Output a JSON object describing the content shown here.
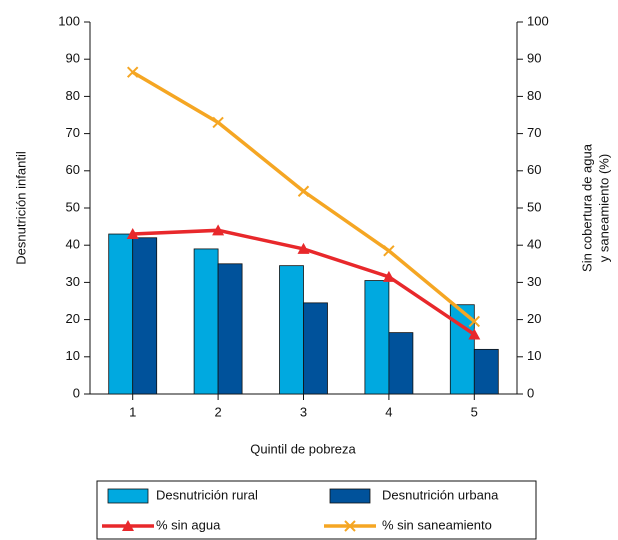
{
  "chart_data": {
    "type": "bar_line",
    "categories": [
      "1",
      "2",
      "3",
      "4",
      "5"
    ],
    "xlabel": "Quintil de pobreza",
    "ylabel": "Desnutrición infantil",
    "y2label": [
      "Sin cobertura de agua",
      "y saneamiento (%)"
    ],
    "ylim": [
      0,
      100
    ],
    "yticks": [
      0,
      10,
      20,
      30,
      40,
      50,
      60,
      70,
      80,
      90,
      100
    ],
    "y2lim": [
      0,
      100
    ],
    "y2ticks": [
      0,
      10,
      20,
      30,
      40,
      50,
      60,
      70,
      80,
      90,
      100
    ],
    "legend": "bottom",
    "series": [
      {
        "name": "Desnutrición rural",
        "type": "bar",
        "color": "#00a9e0",
        "values": [
          43,
          39,
          34.5,
          30.5,
          24
        ]
      },
      {
        "name": "Desnutrición urbana",
        "type": "bar",
        "color": "#00529b",
        "values": [
          42,
          35,
          24.5,
          16.5,
          12
        ]
      },
      {
        "name": "% sin agua",
        "type": "line",
        "marker": "triangle",
        "axis": "y2",
        "color": "#e8282b",
        "values": [
          43,
          44,
          39,
          31.5,
          16
        ]
      },
      {
        "name": "% sin saneamiento",
        "type": "line",
        "marker": "x",
        "axis": "y2",
        "color": "#f5a623",
        "values": [
          86.5,
          73,
          54.5,
          38.5,
          19.5
        ]
      }
    ]
  }
}
